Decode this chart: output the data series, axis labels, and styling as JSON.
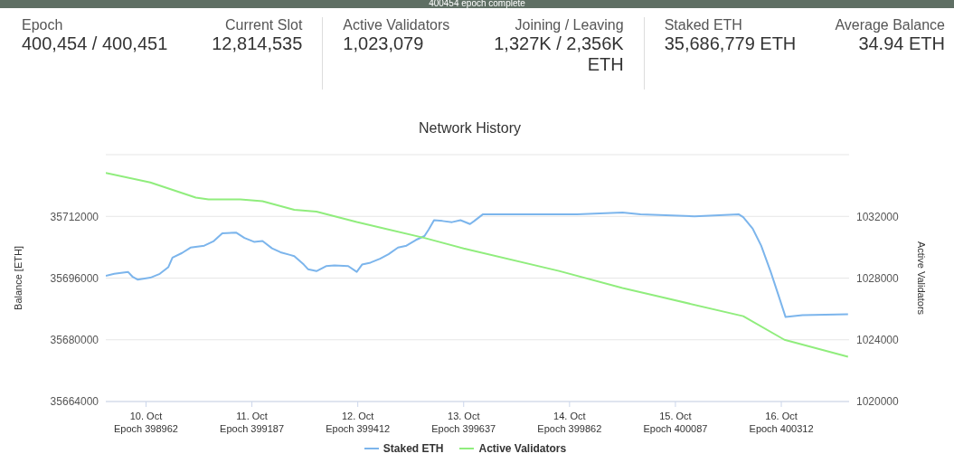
{
  "chart_data": [
    {
      "type": "other",
      "annotations": [
        "400454 epoch complete",
        "Epoch",
        "400,454 / 400,451",
        "Current Slot",
        "12,814,535",
        "Active Validators",
        "1,023,079",
        "Joining / Leaving",
        "1,327K / 2,356K ETH",
        "Staked ETH",
        "35,686,779 ETH",
        "Average Balance",
        "34.94 ETH"
      ]
    },
    {
      "type": "line",
      "title": "Network History",
      "ylabel": "Balance [ETH]",
      "y2label": "Active Validators",
      "legend": "bottom",
      "grid": "y",
      "marker": "none",
      "line_style": "solid",
      "xlim": [
        "--10-09T14:53",
        "--10-16T15:22"
      ],
      "xticks": [
        {
          "value": "--10-10",
          "label": "10. Oct\nEpoch 398962"
        },
        {
          "value": "--10-11",
          "label": "11. Oct\nEpoch 399187"
        },
        {
          "value": "--10-12",
          "label": "12. Oct\nEpoch 399412"
        },
        {
          "value": "--10-13",
          "label": "13. Oct\nEpoch 399637"
        },
        {
          "value": "--10-14",
          "label": "14. Oct\nEpoch 399862"
        },
        {
          "value": "--10-15",
          "label": "15. Oct\nEpoch 400087"
        },
        {
          "value": "--10-16",
          "label": "16. Oct\nEpoch 400312"
        }
      ],
      "ylim": [
        35664000,
        35728000
      ],
      "yticks": [
        35664000,
        35680000,
        35696000,
        35712000
      ],
      "y2lim": [
        1020000,
        1036000
      ],
      "y2ticks": [
        1020000,
        1024000,
        1028000,
        1032000
      ],
      "series": [
        {
          "name": "Staked ETH",
          "color": "#7cb5ec",
          "x": [
            "--10-09T14:53",
            "--10-09T16:48",
            "--10-09T19:55",
            "--10-09T20:53",
            "--10-09T22:05",
            "--10-10T00:58",
            "--10-10T03:07",
            "--10-10T05:02",
            "--10-10T06:00",
            "--10-10T08:10",
            "--10-10T10:05",
            "--10-10T13:12",
            "--10-10T15:22",
            "--10-10T17:17",
            "--10-10T20:24",
            "--10-10T22:19",
            "--10-11T00:29",
            "--10-11T02:24",
            "--10-11T04:34",
            "--10-11T06:29",
            "--10-11T08:38",
            "--10-11T09:36",
            "--10-11T11:46",
            "--10-11T12:43",
            "--10-11T14:38",
            "--10-11T16:48",
            "--10-11T18:43",
            "--10-11T21:50",
            "--10-11T23:46",
            "--10-12T00:58",
            "--10-12T02:53",
            "--10-12T05:02",
            "--10-12T06:58",
            "--10-12T09:07",
            "--10-12T11:02",
            "--10-12T13:12",
            "--10-12T15:07",
            "--10-12T16:05",
            "--10-12T17:17",
            "--10-12T19:12",
            "--10-12T21:22",
            "--10-12T23:17",
            "--10-13T01:26",
            "--10-13T02:24",
            "--10-13T04:19",
            "--10-13T15:36",
            "--10-14T01:41",
            "--10-14T12:00",
            "--10-14T16:05",
            "--10-15T04:19",
            "--10-15T14:24",
            "--10-15T15:22",
            "--10-15T17:31",
            "--10-15T19:26",
            "--10-15T21:36",
            "--10-15T23:31",
            "--10-16T00:58",
            "--10-16T04:48",
            "--10-16T15:07"
          ],
          "values": [
            35696600,
            35697100,
            35697600,
            35696400,
            35695600,
            35696100,
            35697100,
            35698800,
            35701300,
            35702500,
            35703900,
            35704400,
            35705600,
            35707600,
            35707800,
            35706400,
            35705400,
            35705600,
            35703700,
            35702700,
            35702000,
            35701700,
            35699500,
            35698300,
            35697800,
            35699100,
            35699300,
            35699100,
            35697600,
            35699500,
            35700000,
            35701000,
            35702200,
            35703900,
            35704400,
            35705900,
            35706900,
            35708600,
            35711000,
            35710800,
            35710500,
            35711000,
            35710000,
            35710800,
            35712500,
            35712500,
            35712500,
            35713000,
            35712500,
            35712000,
            35712500,
            35711800,
            35708800,
            35704400,
            35697600,
            35691000,
            35685900,
            35686400,
            35686600
          ]
        },
        {
          "name": "Active Validators",
          "color": "#90ed7d",
          "axis": "y2",
          "x": [
            "--10-09T14:53",
            "--10-10T00:58",
            "--10-10T11:17",
            "--10-10T14:10",
            "--10-10T21:22",
            "--10-11T02:24",
            "--10-11T09:36",
            "--10-11T14:38",
            "--10-11T23:46",
            "--10-12T15:07",
            "--10-13T00:00",
            "--10-13T21:36",
            "--10-14T12:00",
            "--10-14T20:10",
            "--10-15T15:22",
            "--10-16T00:43",
            "--10-16T15:07"
          ],
          "values": [
            1034810,
            1034200,
            1033220,
            1033100,
            1033100,
            1032980,
            1032430,
            1032310,
            1031630,
            1030600,
            1029920,
            1028460,
            1027360,
            1026810,
            1025530,
            1024000,
            1022900
          ]
        }
      ]
    }
  ]
}
